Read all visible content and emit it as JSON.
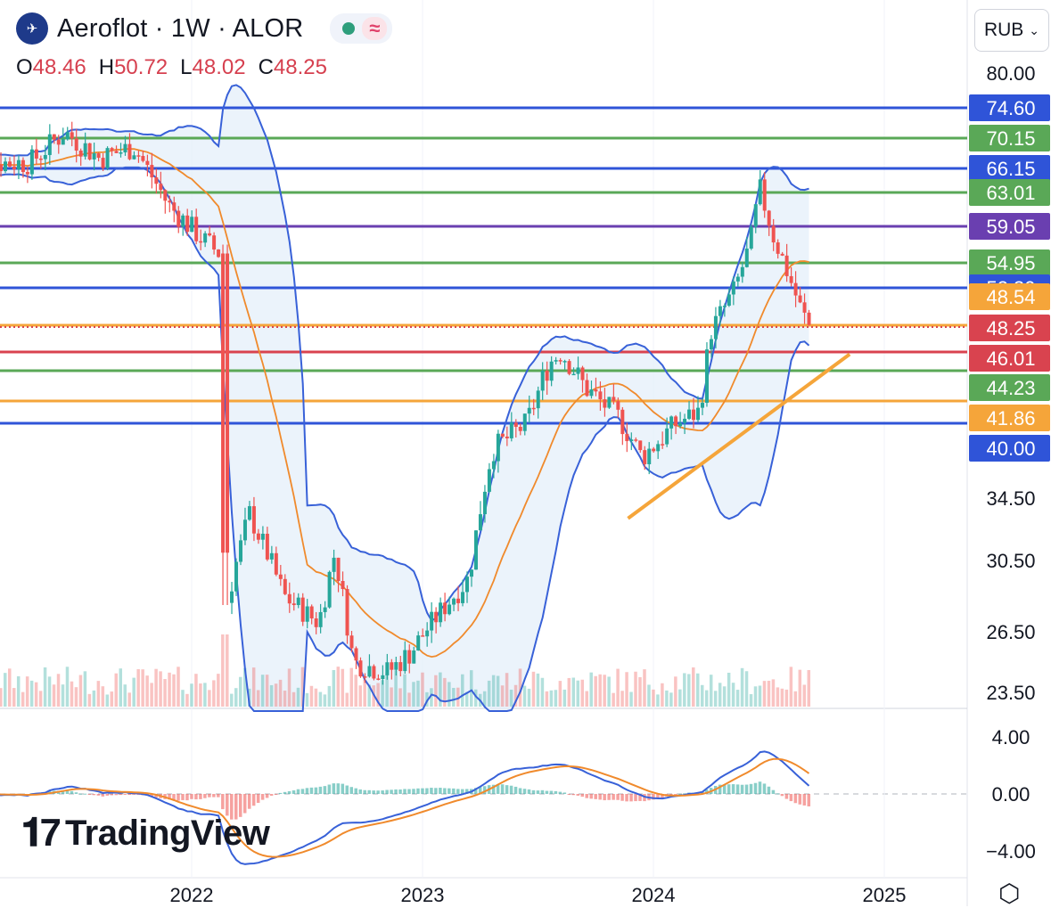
{
  "header": {
    "title": "Aeroflot · 1W · ALOR",
    "ohlc": [
      {
        "k": "O",
        "v": "48.46"
      },
      {
        "k": "H",
        "v": "50.72"
      },
      {
        "k": "L",
        "v": "48.02"
      },
      {
        "k": "C",
        "v": "48.25"
      }
    ],
    "currency": "RUB",
    "brand": "TradingView"
  },
  "colors": {
    "up": "#26a69a",
    "down": "#ef5350",
    "bb": "#3861d8",
    "bbFill": "#e3eefa",
    "ma": "#f08a2c",
    "blue": "#2f54d8",
    "green": "#5aa857",
    "purple": "#6a3fb0",
    "orange": "#f5a53a",
    "red": "#d9434f"
  },
  "chart_data": {
    "type": "candlestick",
    "yTickLabels": [
      "80.00",
      "34.50",
      "30.50",
      "26.50",
      "23.50"
    ],
    "yTicks": [
      80,
      34.5,
      30.5,
      26.5,
      23.5
    ],
    "xTicks": [
      {
        "label": "2022",
        "t": 2022.0
      },
      {
        "label": "2023",
        "t": 2023.0
      },
      {
        "label": "2024",
        "t": 2024.0
      },
      {
        "label": "2025",
        "t": 2025.0
      }
    ],
    "levels": [
      {
        "label": "74.60",
        "role": "blue"
      },
      {
        "label": "70.15",
        "role": "green"
      },
      {
        "label": "66.15",
        "role": "blue"
      },
      {
        "label": "63.01",
        "role": "green"
      },
      {
        "label": "59.05",
        "role": "purple"
      },
      {
        "label": "54.95",
        "role": "green"
      },
      {
        "label": "52.30",
        "role": "blue"
      },
      {
        "label": "48.54",
        "role": "orange"
      },
      {
        "label": "48.25",
        "role": "red"
      },
      {
        "label": "46.01",
        "role": "red"
      },
      {
        "label": "44.23",
        "role": "green"
      },
      {
        "label": "41.86",
        "role": "orange"
      },
      {
        "label": "40.00",
        "role": "blue"
      }
    ],
    "keyCloses": [
      {
        "t": 2021.3,
        "v": 66.9
      },
      {
        "t": 2021.45,
        "v": 71.0
      },
      {
        "t": 2021.6,
        "v": 67.5
      },
      {
        "t": 2021.75,
        "v": 69.0
      },
      {
        "t": 2021.9,
        "v": 61.5
      },
      {
        "t": 2022.05,
        "v": 57.5
      },
      {
        "t": 2022.12,
        "v": 56.0
      },
      {
        "t": 2022.15,
        "v": 28.0
      },
      {
        "t": 2022.25,
        "v": 33.5
      },
      {
        "t": 2022.4,
        "v": 28.5
      },
      {
        "t": 2022.55,
        "v": 27.0
      },
      {
        "t": 2022.62,
        "v": 31.0
      },
      {
        "t": 2022.7,
        "v": 25.0
      },
      {
        "t": 2022.85,
        "v": 24.5
      },
      {
        "t": 2022.95,
        "v": 25.5
      },
      {
        "t": 2023.1,
        "v": 28.0
      },
      {
        "t": 2023.2,
        "v": 29.5
      },
      {
        "t": 2023.3,
        "v": 38.0
      },
      {
        "t": 2023.45,
        "v": 40.0
      },
      {
        "t": 2023.55,
        "v": 45.0
      },
      {
        "t": 2023.6,
        "v": 46.0
      },
      {
        "t": 2023.7,
        "v": 43.0
      },
      {
        "t": 2023.85,
        "v": 40.5
      },
      {
        "t": 2023.95,
        "v": 37.5
      },
      {
        "t": 2024.1,
        "v": 40.0
      },
      {
        "t": 2024.2,
        "v": 41.0
      },
      {
        "t": 2024.25,
        "v": 48.0
      },
      {
        "t": 2024.35,
        "v": 52.0
      },
      {
        "t": 2024.42,
        "v": 57.0
      },
      {
        "t": 2024.46,
        "v": 63.5
      },
      {
        "t": 2024.52,
        "v": 58.0
      },
      {
        "t": 2024.58,
        "v": 54.0
      },
      {
        "t": 2024.64,
        "v": 50.0
      },
      {
        "t": 2024.68,
        "v": 48.25
      }
    ],
    "macdTickLabels": [
      "4.00",
      "0.00",
      "−4.00"
    ],
    "macdTicks": [
      4,
      0,
      -4
    ]
  }
}
